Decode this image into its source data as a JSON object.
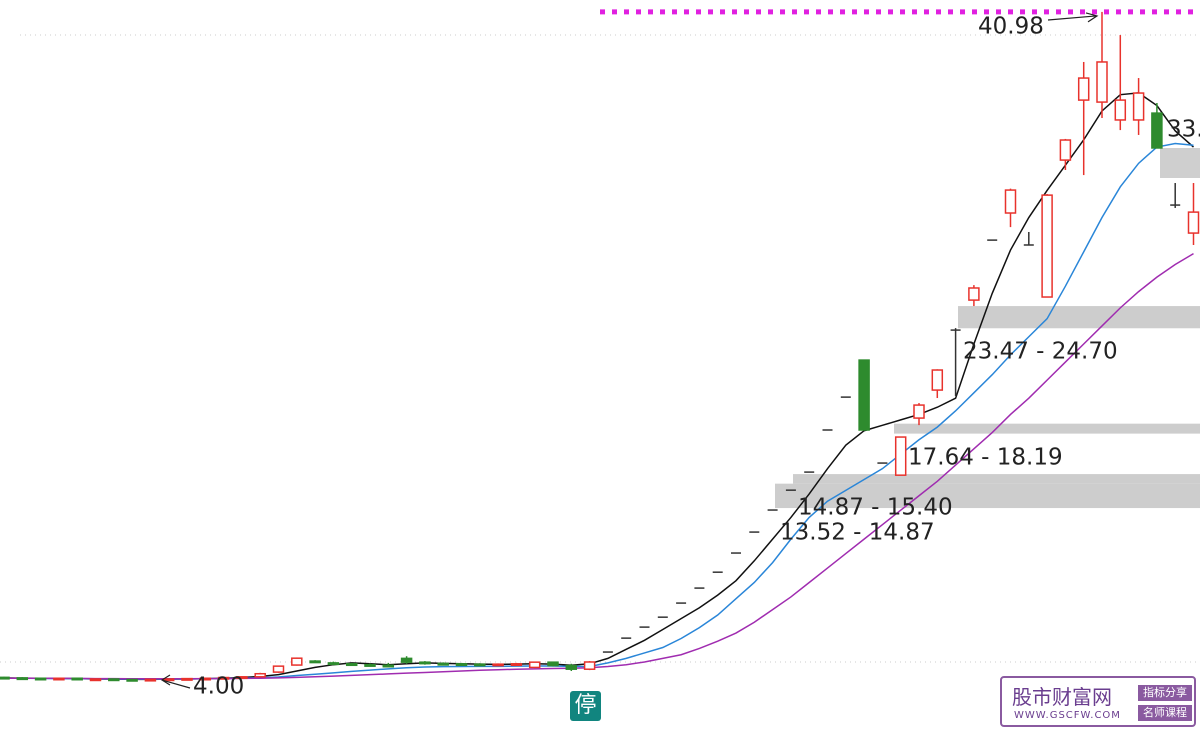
{
  "chart_data": {
    "type": "candlestick",
    "ylim": [
      1.18,
      41.64
    ],
    "open": [
      4.15,
      4.12,
      4.1,
      4.08,
      4.1,
      4.05,
      4.06,
      4.03,
      4.02,
      4.04,
      4.06,
      4.08,
      4.1,
      4.14,
      4.18,
      4.44,
      4.83,
      5.05,
      4.95,
      4.9,
      4.85,
      4.82,
      5.2,
      4.99,
      4.92,
      4.9,
      4.88,
      4.85,
      4.88,
      4.7,
      4.99,
      4.8,
      4.6,
      5.55,
      6.32,
      6.93,
      7.48,
      8.26,
      9.09,
      9.97,
      11.03,
      12.19,
      13.41,
      14.51,
      15.51,
      17.84,
      19.66,
      21.71,
      16.01,
      15.34,
      18.5,
      20.05,
      23.37,
      25.03,
      28.35,
      29.85,
      28.08,
      25.2,
      32.78,
      36.1,
      35.99,
      35.0,
      35.0,
      35.38,
      30.29,
      28.74
    ],
    "high": [
      4.18,
      4.16,
      4.14,
      4.12,
      4.13,
      4.09,
      4.08,
      4.06,
      4.05,
      4.08,
      4.1,
      4.12,
      4.16,
      4.2,
      4.4,
      4.8,
      5.25,
      5.1,
      5.02,
      4.95,
      4.92,
      4.95,
      5.32,
      5.05,
      4.98,
      4.95,
      4.93,
      4.92,
      4.95,
      5.02,
      5.0,
      4.9,
      5.05,
      5.55,
      6.32,
      6.93,
      7.48,
      8.26,
      9.09,
      9.97,
      11.03,
      12.19,
      13.41,
      14.51,
      15.51,
      17.84,
      19.66,
      21.71,
      16.01,
      17.45,
      19.33,
      21.2,
      23.48,
      25.86,
      28.35,
      31.2,
      28.8,
      30.9,
      33.95,
      38.21,
      40.98,
      39.7,
      37.32,
      35.94,
      31.51,
      31.51
    ],
    "low": [
      4.1,
      4.08,
      4.05,
      4.04,
      4.03,
      4.02,
      4.01,
      4.0,
      4.0,
      4.0,
      4.03,
      4.05,
      4.08,
      4.1,
      4.15,
      4.4,
      4.8,
      4.95,
      4.85,
      4.8,
      4.78,
      4.75,
      4.9,
      4.85,
      4.85,
      4.82,
      4.8,
      4.8,
      4.82,
      4.66,
      4.75,
      4.5,
      4.55,
      5.55,
      6.32,
      6.93,
      7.48,
      8.26,
      9.09,
      9.97,
      11.03,
      12.19,
      13.41,
      14.51,
      15.51,
      17.84,
      19.66,
      17.84,
      16.01,
      15.34,
      18.11,
      19.61,
      19.72,
      24.7,
      28.35,
      29.07,
      28.08,
      25.2,
      32.23,
      31.95,
      35.11,
      34.44,
      34.17,
      33.45,
      30.13,
      28.08
    ],
    "close": [
      4.12,
      4.1,
      4.08,
      4.1,
      4.05,
      4.06,
      4.03,
      4.02,
      4.04,
      4.06,
      4.08,
      4.1,
      4.14,
      4.18,
      4.35,
      4.77,
      5.21,
      5.0,
      4.9,
      4.85,
      4.82,
      4.78,
      4.99,
      4.92,
      4.9,
      4.88,
      4.85,
      4.88,
      4.9,
      4.99,
      4.8,
      4.6,
      5.0,
      5.55,
      6.32,
      6.93,
      7.48,
      8.26,
      9.09,
      9.97,
      11.03,
      12.19,
      13.41,
      14.51,
      15.51,
      17.84,
      19.66,
      17.84,
      16.01,
      17.45,
      19.22,
      21.16,
      23.37,
      25.7,
      28.35,
      31.12,
      28.08,
      30.84,
      33.89,
      37.32,
      38.21,
      36.1,
      36.49,
      33.45,
      30.29,
      29.9
    ],
    "up_color": "#e8322c",
    "down_color": "#2e8b2e",
    "flat_color": "#333333",
    "lines": [
      {
        "color": "#111111",
        "values": [
          4.12,
          4.11,
          4.1,
          4.09,
          4.08,
          4.06,
          4.05,
          4.04,
          4.04,
          4.05,
          4.06,
          4.08,
          4.1,
          4.14,
          4.2,
          4.3,
          4.5,
          4.7,
          4.85,
          4.95,
          4.9,
          4.85,
          4.9,
          4.95,
          4.92,
          4.9,
          4.88,
          4.87,
          4.88,
          4.9,
          4.88,
          4.82,
          4.9,
          5.2,
          5.7,
          6.2,
          6.8,
          7.4,
          8.0,
          8.7,
          9.5,
          10.6,
          11.8,
          13.0,
          14.3,
          15.7,
          17.0,
          17.8,
          18.1,
          18.4,
          18.7,
          19.1,
          19.6,
          22.6,
          25.4,
          27.8,
          29.6,
          31.1,
          32.5,
          33.9,
          35.5,
          36.4,
          36.5,
          35.8,
          34.4,
          33.5
        ]
      },
      {
        "color": "#2a86d8",
        "values": [
          4.1,
          4.1,
          4.09,
          4.08,
          4.08,
          4.07,
          4.06,
          4.05,
          4.05,
          4.05,
          4.06,
          4.07,
          4.08,
          4.1,
          4.13,
          4.17,
          4.25,
          4.32,
          4.4,
          4.48,
          4.55,
          4.62,
          4.68,
          4.72,
          4.74,
          4.75,
          4.76,
          4.76,
          4.77,
          4.78,
          4.78,
          4.76,
          4.75,
          4.95,
          5.2,
          5.5,
          5.8,
          6.3,
          6.9,
          7.6,
          8.5,
          9.4,
          10.5,
          11.8,
          13.0,
          13.9,
          14.5,
          15.1,
          15.7,
          16.5,
          17.3,
          18.0,
          18.9,
          19.9,
          20.9,
          22.0,
          23.0,
          24.0,
          25.8,
          27.7,
          29.6,
          31.3,
          32.6,
          33.5,
          33.7,
          33.6
        ]
      },
      {
        "color": "#a02cb0",
        "values": [
          4.1,
          4.1,
          4.1,
          4.09,
          4.09,
          4.08,
          4.08,
          4.07,
          4.07,
          4.07,
          4.07,
          4.08,
          4.08,
          4.09,
          4.1,
          4.12,
          4.15,
          4.18,
          4.22,
          4.26,
          4.3,
          4.34,
          4.38,
          4.42,
          4.46,
          4.5,
          4.54,
          4.57,
          4.6,
          4.62,
          4.64,
          4.65,
          4.68,
          4.75,
          4.85,
          5.0,
          5.2,
          5.4,
          5.75,
          6.15,
          6.6,
          7.2,
          7.9,
          8.6,
          9.4,
          10.2,
          11.0,
          11.8,
          12.6,
          13.4,
          14.2,
          15.0,
          15.9,
          16.8,
          17.7,
          18.7,
          19.6,
          20.6,
          21.6,
          22.6,
          23.6,
          24.6,
          25.5,
          26.3,
          27.0,
          27.6
        ]
      }
    ],
    "high_mark": {
      "label": "40.98",
      "value": 40.98,
      "color": "#e020e0"
    },
    "low_mark": {
      "label": "4.00",
      "value": 4.0
    },
    "zones": [
      {
        "label": "23.47 - 24.70",
        "low": 23.47,
        "high": 24.7
      },
      {
        "label": "17.64 - 18.19",
        "low": 17.64,
        "high": 18.19
      },
      {
        "label": "14.87 - 15.40",
        "low": 14.87,
        "high": 15.4
      },
      {
        "label": "13.52 - 14.87",
        "low": 13.52,
        "high": 14.87
      }
    ],
    "edge_label": "33."
  },
  "badge": "停",
  "watermark": {
    "title": "股市财富网",
    "url": "WWW.GSCFW.COM",
    "tags": [
      "指标分享",
      "名师课程"
    ]
  }
}
